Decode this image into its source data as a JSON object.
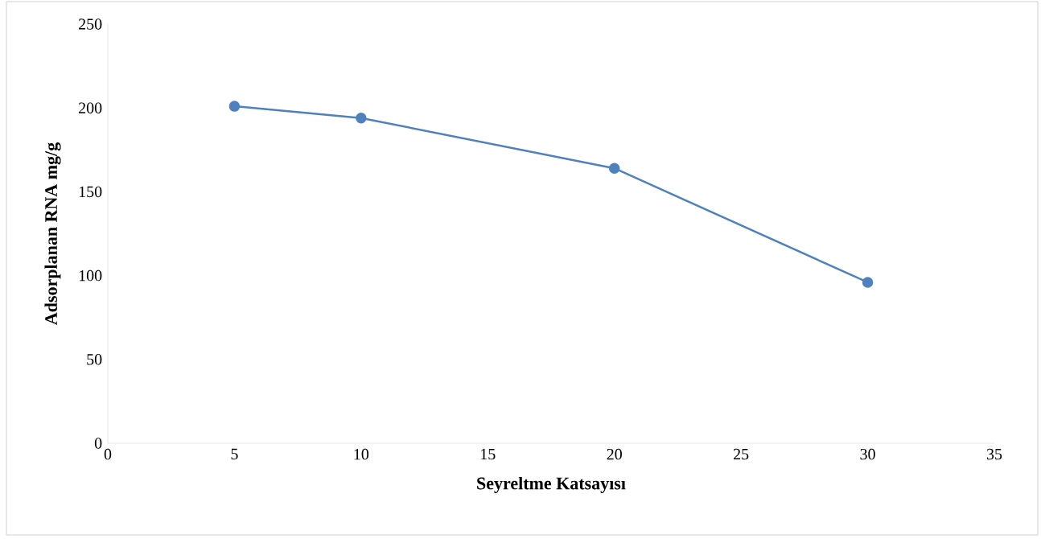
{
  "chart_data": {
    "type": "line",
    "xlabel": "Seyreltme Katsayısı",
    "ylabel": "Adsorplanan RNA mg/g",
    "x": [
      5,
      10,
      20,
      30
    ],
    "series": [
      {
        "color": "#4f81bd",
        "values": [
          201,
          194,
          164,
          96
        ]
      }
    ],
    "xlim": [
      0,
      35
    ],
    "xticks": [
      0,
      5,
      10,
      15,
      20,
      25,
      30,
      35
    ],
    "ylim": [
      0,
      250
    ],
    "yticks": [
      0,
      50,
      100,
      150,
      200,
      250
    ],
    "grid": false,
    "marker": "circle",
    "line_style": "solid"
  }
}
